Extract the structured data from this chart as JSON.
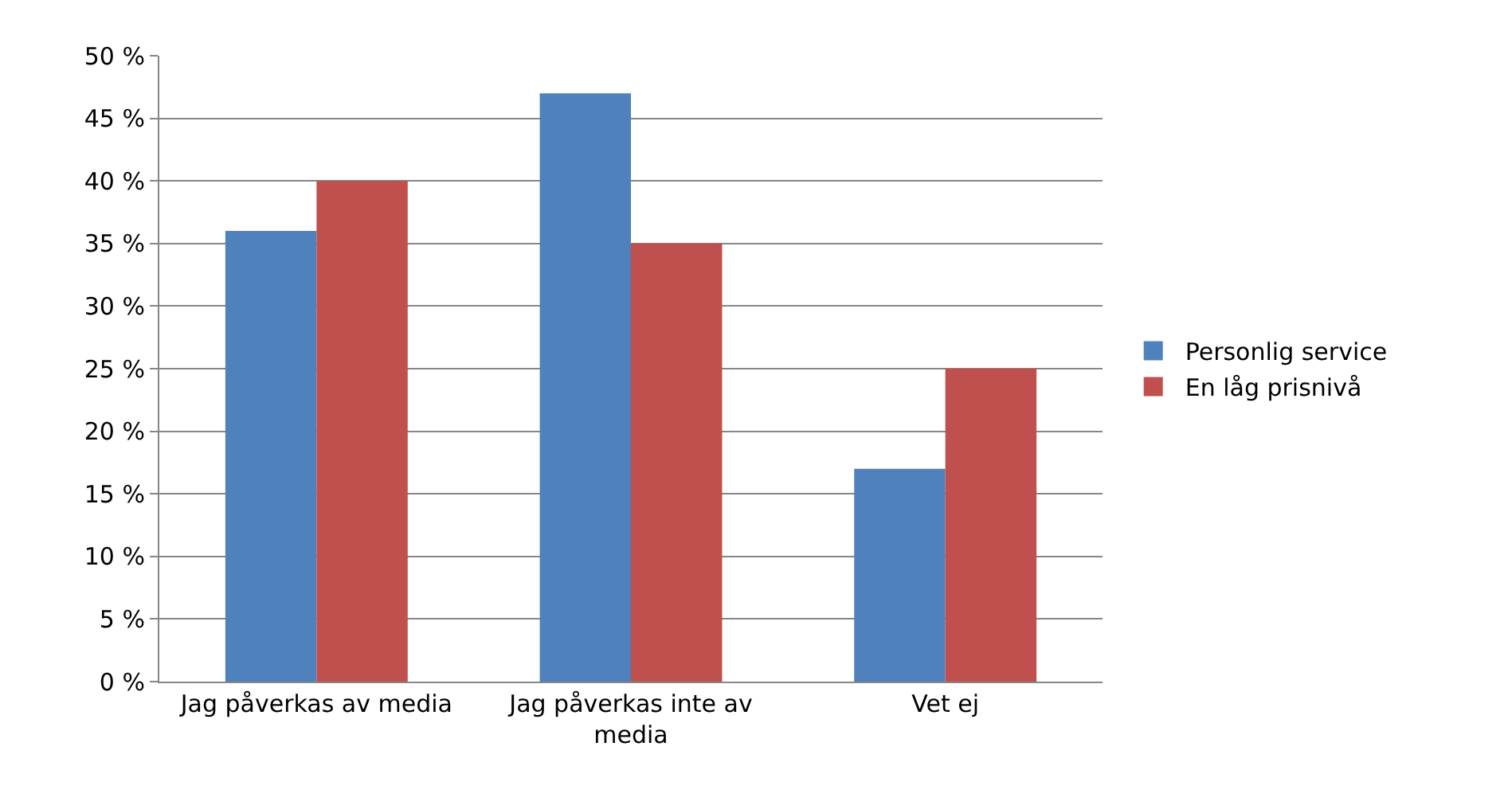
{
  "chart_data": {
    "type": "bar",
    "categories": [
      "Jag påverkas av media",
      "Jag påverkas inte av media",
      "Vet ej"
    ],
    "series": [
      {
        "name": "Personlig service",
        "color": "#4f81bd",
        "values": [
          36,
          47,
          17
        ]
      },
      {
        "name": "En låg prisnivå",
        "color": "#c0504d",
        "values": [
          40,
          35,
          25
        ]
      }
    ],
    "ylim": [
      0,
      50
    ],
    "yticks": [
      {
        "value": 0,
        "label": "0 %"
      },
      {
        "value": 5,
        "label": "5 %"
      },
      {
        "value": 10,
        "label": "10 %"
      },
      {
        "value": 15,
        "label": "15 %"
      },
      {
        "value": 20,
        "label": "20 %"
      },
      {
        "value": 25,
        "label": "25 %"
      },
      {
        "value": 30,
        "label": "30 %"
      },
      {
        "value": 35,
        "label": "35 %"
      },
      {
        "value": 40,
        "label": "40 %"
      },
      {
        "value": 45,
        "label": "45 %"
      },
      {
        "value": 50,
        "label": "50 %"
      }
    ],
    "grid": "y",
    "legend": "right"
  }
}
